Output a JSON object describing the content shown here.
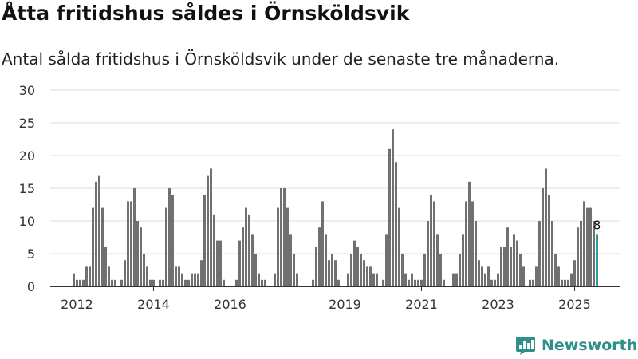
{
  "title": "Åtta fritidshus såldes i Örnsköldsvik",
  "subtitle": "Antal sålda fritidshus i Örnsköldsvik under de senaste tre månaderna.",
  "brand": {
    "name": "Newsworthy",
    "icon": "bar-chart-logo-icon",
    "color": "#2f8f8a"
  },
  "colors": {
    "bar": "#707070",
    "highlight": "#2e9b96",
    "grid": "#dddddd",
    "axis": "#333333",
    "text": "#333333"
  },
  "chart_data": {
    "type": "bar",
    "title": "Åtta fritidshus såldes i Örnsköldsvik",
    "xlabel": "",
    "ylabel": "",
    "ylim": [
      0,
      30
    ],
    "yticks": [
      0,
      5,
      10,
      15,
      20,
      25,
      30
    ],
    "grid": true,
    "x_start": "2011-12",
    "values": [
      2,
      1,
      1,
      1,
      3,
      3,
      12,
      16,
      17,
      12,
      6,
      3,
      1,
      1,
      0,
      1,
      4,
      13,
      13,
      15,
      10,
      9,
      5,
      3,
      1,
      1,
      0,
      1,
      1,
      12,
      15,
      14,
      3,
      3,
      2,
      1,
      1,
      2,
      2,
      2,
      4,
      14,
      17,
      18,
      11,
      7,
      7,
      1,
      0,
      0,
      0,
      1,
      7,
      9,
      12,
      11,
      8,
      5,
      2,
      1,
      1,
      0,
      0,
      2,
      12,
      15,
      15,
      12,
      8,
      5,
      2,
      0,
      0,
      0,
      0,
      1,
      6,
      9,
      13,
      8,
      4,
      5,
      4,
      1,
      0,
      0,
      2,
      5,
      7,
      6,
      5,
      4,
      3,
      3,
      2,
      2,
      0,
      1,
      8,
      21,
      24,
      19,
      12,
      5,
      2,
      1,
      2,
      1,
      1,
      1,
      5,
      10,
      14,
      13,
      8,
      5,
      1,
      0,
      0,
      2,
      2,
      5,
      8,
      13,
      16,
      13,
      10,
      4,
      3,
      2,
      3,
      1,
      1,
      2,
      6,
      6,
      9,
      6,
      8,
      7,
      5,
      3,
      0,
      1,
      1,
      3,
      10,
      15,
      18,
      14,
      10,
      5,
      3,
      1,
      1,
      1,
      2,
      4,
      9,
      10,
      13,
      12,
      12,
      10,
      8
    ],
    "highlight_last": true,
    "last_label": "8",
    "x_tick_labels": [
      {
        "year": 2012,
        "index": 1
      },
      {
        "year": 2014,
        "index": 25
      },
      {
        "year": 2016,
        "index": 49
      },
      {
        "year": 2019,
        "index": 85
      },
      {
        "year": 2021,
        "index": 109
      },
      {
        "year": 2023,
        "index": 133
      },
      {
        "year": 2025,
        "index": 157
      }
    ]
  }
}
